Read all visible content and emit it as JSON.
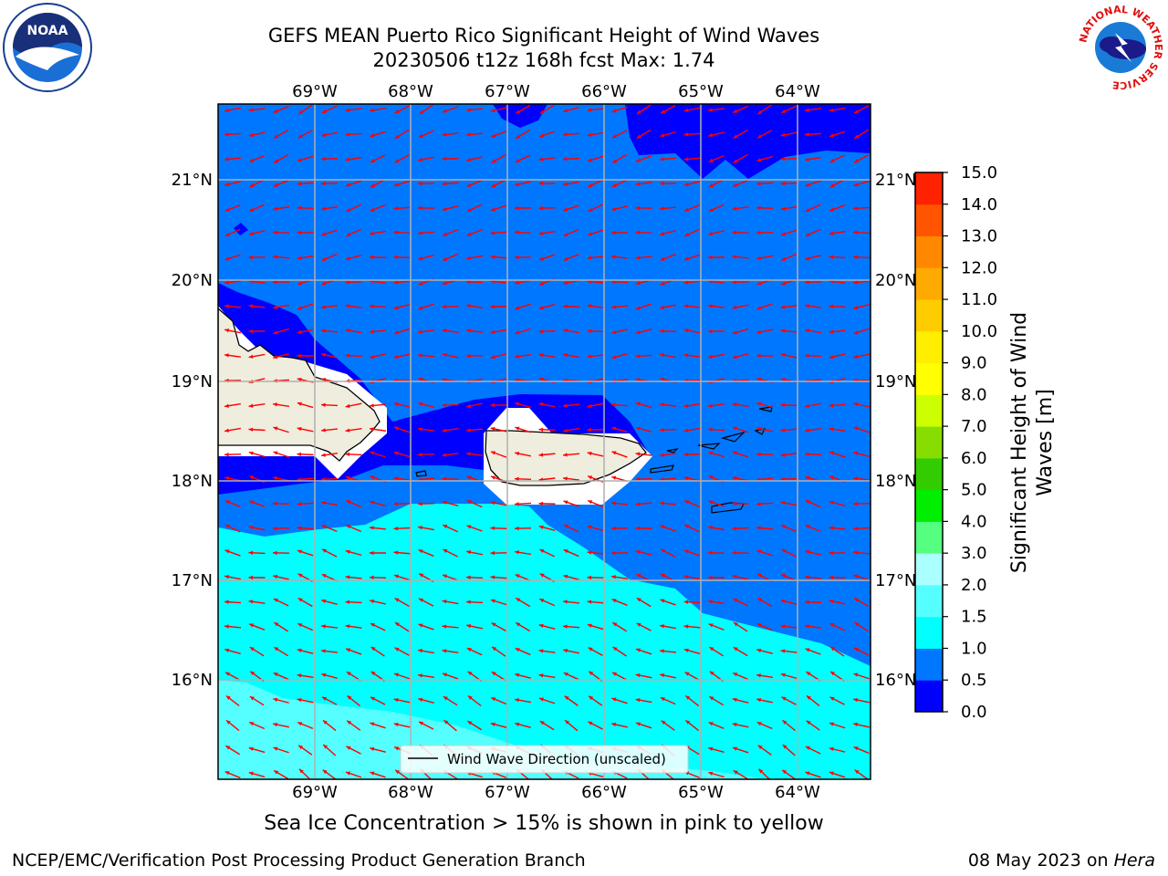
{
  "title_line1": "GEFS MEAN Puerto Rico Significant Height of Wind Waves",
  "title_line2": "20230506 t12z 168h fcst   Max: 1.74",
  "logos": {
    "left": "noaa-logo",
    "right": "national-weather-service-logo",
    "noaa_text": "NOAA",
    "nws_ring_text": "NATIONAL WEATHER SERVICE"
  },
  "map": {
    "lon_ticks": [
      "69°W",
      "68°W",
      "67°W",
      "66°W",
      "65°W",
      "64°W"
    ],
    "lat_ticks": [
      "21°N",
      "20°N",
      "19°N",
      "18°N",
      "17°N",
      "16°N"
    ],
    "lon_range": [
      -70,
      -63.25
    ],
    "lat_range": [
      15.0,
      21.75
    ],
    "land_color": "#efedde",
    "arrow_color": "#ff0000",
    "grid": true
  },
  "legend": {
    "label": "Wind Wave Direction (unscaled)",
    "placement": "lower-center"
  },
  "colorbar": {
    "label": "Significant Height of Wind Waves [m]",
    "ticks": [
      "0.0",
      "0.5",
      "1.0",
      "1.5",
      "2.0",
      "3.0",
      "4.0",
      "5.0",
      "6.0",
      "7.0",
      "8.0",
      "9.0",
      "10.0",
      "11.0",
      "12.0",
      "13.0",
      "14.0",
      "15.0"
    ],
    "colors": [
      "#0000ff",
      "#0077ff",
      "#00ffff",
      "#55ffff",
      "#aaffff",
      "#55ff80",
      "#00ee00",
      "#33cc00",
      "#88dd00",
      "#ccff00",
      "#ffff00",
      "#ffee00",
      "#ffcc00",
      "#ffaa00",
      "#ff8800",
      "#ff5500",
      "#ff2200"
    ]
  },
  "footer": {
    "sea_ice_note": "Sea Ice Concentration > 15% is shown in pink to yellow",
    "credit_left": "NCEP/EMC/Verification Post Processing Product Generation Branch",
    "credit_right_date": "08 May 2023 on",
    "credit_right_machine": "Hera"
  }
}
